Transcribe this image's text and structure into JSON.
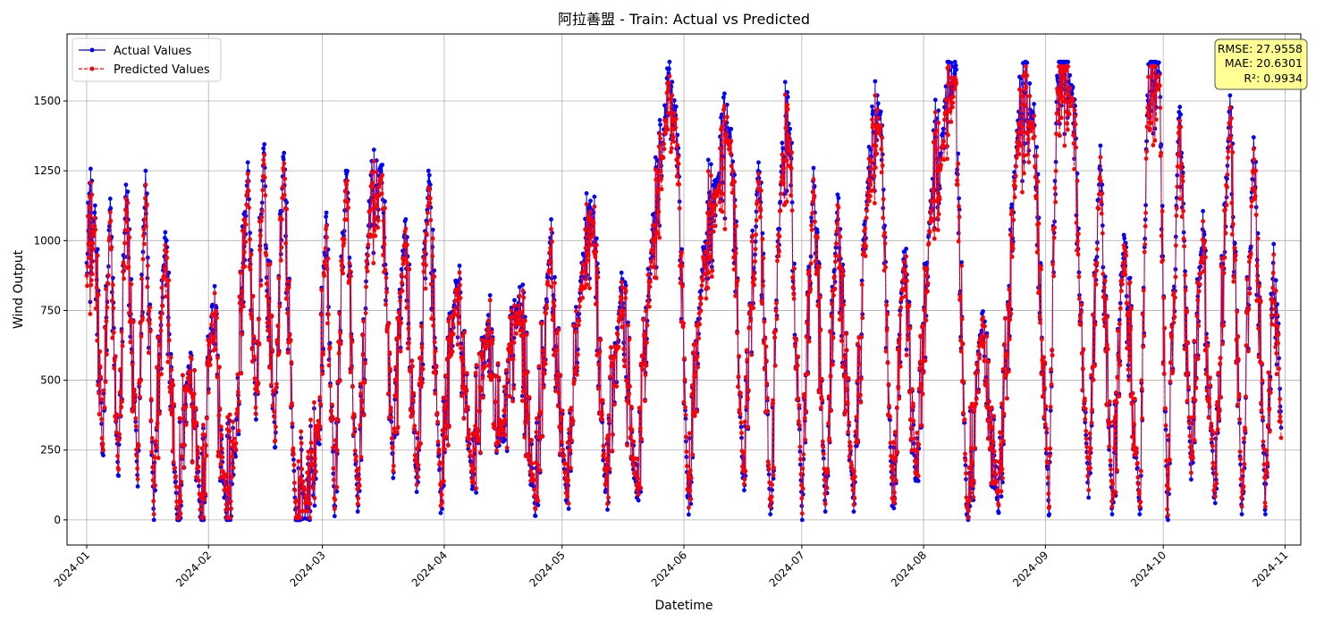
{
  "chart_data": {
    "type": "line",
    "title": "阿拉善盟 - Train: Actual vs Predicted",
    "xlabel": "Datetime",
    "ylabel": "Wind Output",
    "xlim": [
      "2023-12-27",
      "2024-11-05"
    ],
    "ylim": [
      -90,
      1740
    ],
    "grid": true,
    "legend_position": "top-left",
    "x_ticks": [
      "2024-01",
      "2024-02",
      "2024-03",
      "2024-04",
      "2024-05",
      "2024-06",
      "2024-07",
      "2024-08",
      "2024-09",
      "2024-10",
      "2024-11"
    ],
    "y_ticks": [
      0,
      250,
      500,
      750,
      1000,
      1250,
      1500
    ],
    "series": [
      {
        "name": "Actual Values",
        "color": "#0000ff",
        "style": "solid",
        "marker": "circle",
        "x_range": [
          "2024-01-01",
          "2024-10-31"
        ],
        "points": [
          [
            "2024-01-01",
            920
          ],
          [
            "2024-01-03",
            1100
          ],
          [
            "2024-01-05",
            240
          ],
          [
            "2024-01-07",
            1150
          ],
          [
            "2024-01-09",
            160
          ],
          [
            "2024-01-11",
            1200
          ],
          [
            "2024-01-14",
            120
          ],
          [
            "2024-01-16",
            1250
          ],
          [
            "2024-01-18",
            40
          ],
          [
            "2024-01-21",
            1030
          ],
          [
            "2024-01-24",
            20
          ],
          [
            "2024-01-27",
            550
          ],
          [
            "2024-01-30",
            10
          ],
          [
            "2024-02-02",
            770
          ],
          [
            "2024-02-05",
            80
          ],
          [
            "2024-02-08",
            250
          ],
          [
            "2024-02-11",
            1280
          ],
          [
            "2024-02-13",
            380
          ],
          [
            "2024-02-15",
            1330
          ],
          [
            "2024-02-18",
            260
          ],
          [
            "2024-02-20",
            1300
          ],
          [
            "2024-02-23",
            80
          ],
          [
            "2024-02-26",
            40
          ],
          [
            "2024-02-29",
            300
          ],
          [
            "2024-03-02",
            1100
          ],
          [
            "2024-03-04",
            50
          ],
          [
            "2024-03-07",
            1250
          ],
          [
            "2024-03-10",
            30
          ],
          [
            "2024-03-13",
            1140
          ],
          [
            "2024-03-16",
            1270
          ],
          [
            "2024-03-19",
            150
          ],
          [
            "2024-03-22",
            1070
          ],
          [
            "2024-03-25",
            100
          ],
          [
            "2024-03-28",
            1250
          ],
          [
            "2024-03-31",
            100
          ],
          [
            "2024-04-04",
            850
          ],
          [
            "2024-04-08",
            150
          ],
          [
            "2024-04-12",
            700
          ],
          [
            "2024-04-16",
            280
          ],
          [
            "2024-04-20",
            800
          ],
          [
            "2024-04-24",
            60
          ],
          [
            "2024-04-28",
            1010
          ],
          [
            "2024-05-02",
            70
          ],
          [
            "2024-05-06",
            920
          ],
          [
            "2024-05-09",
            1100
          ],
          [
            "2024-05-12",
            100
          ],
          [
            "2024-05-16",
            820
          ],
          [
            "2024-05-20",
            80
          ],
          [
            "2024-05-24",
            1040
          ],
          [
            "2024-05-27",
            1380
          ],
          [
            "2024-05-30",
            1480
          ],
          [
            "2024-06-02",
            80
          ],
          [
            "2024-06-06",
            970
          ],
          [
            "2024-06-10",
            1240
          ],
          [
            "2024-06-13",
            1400
          ],
          [
            "2024-06-16",
            150
          ],
          [
            "2024-06-20",
            1280
          ],
          [
            "2024-06-23",
            20
          ],
          [
            "2024-06-26",
            1350
          ],
          [
            "2024-06-28",
            1400
          ],
          [
            "2024-07-01",
            50
          ],
          [
            "2024-07-04",
            1260
          ],
          [
            "2024-07-07",
            30
          ],
          [
            "2024-07-10",
            1100
          ],
          [
            "2024-07-14",
            80
          ],
          [
            "2024-07-18",
            1260
          ],
          [
            "2024-07-21",
            1460
          ],
          [
            "2024-07-24",
            50
          ],
          [
            "2024-07-27",
            960
          ],
          [
            "2024-07-30",
            140
          ],
          [
            "2024-08-03",
            1180
          ],
          [
            "2024-08-06",
            1400
          ],
          [
            "2024-08-09",
            1640
          ],
          [
            "2024-08-12",
            20
          ],
          [
            "2024-08-16",
            720
          ],
          [
            "2024-08-20",
            30
          ],
          [
            "2024-08-25",
            1430
          ],
          [
            "2024-08-29",
            1450
          ],
          [
            "2024-09-02",
            20
          ],
          [
            "2024-09-04",
            1590
          ],
          [
            "2024-09-08",
            1550
          ],
          [
            "2024-09-12",
            80
          ],
          [
            "2024-09-15",
            1340
          ],
          [
            "2024-09-18",
            20
          ],
          [
            "2024-09-21",
            1020
          ],
          [
            "2024-09-25",
            20
          ],
          [
            "2024-09-27",
            1520
          ],
          [
            "2024-09-30",
            1600
          ],
          [
            "2024-10-02",
            10
          ],
          [
            "2024-10-05",
            1460
          ],
          [
            "2024-10-08",
            200
          ],
          [
            "2024-10-11",
            1040
          ],
          [
            "2024-10-14",
            80
          ],
          [
            "2024-10-18",
            1520
          ],
          [
            "2024-10-21",
            20
          ],
          [
            "2024-10-24",
            1370
          ],
          [
            "2024-10-27",
            20
          ],
          [
            "2024-10-29",
            920
          ],
          [
            "2024-10-31",
            330
          ]
        ]
      },
      {
        "name": "Predicted Values",
        "color": "#ff0000",
        "style": "dashed",
        "marker": "circle",
        "x_range": [
          "2024-01-01",
          "2024-10-31"
        ],
        "points": [
          [
            "2024-01-01",
            880
          ],
          [
            "2024-01-03",
            1060
          ],
          [
            "2024-01-05",
            260
          ],
          [
            "2024-01-07",
            1110
          ],
          [
            "2024-01-09",
            180
          ],
          [
            "2024-01-11",
            1160
          ],
          [
            "2024-01-14",
            140
          ],
          [
            "2024-01-16",
            1210
          ],
          [
            "2024-01-18",
            60
          ],
          [
            "2024-01-21",
            990
          ],
          [
            "2024-01-24",
            40
          ],
          [
            "2024-01-27",
            530
          ],
          [
            "2024-01-30",
            30
          ],
          [
            "2024-02-02",
            740
          ],
          [
            "2024-02-05",
            100
          ],
          [
            "2024-02-08",
            270
          ],
          [
            "2024-02-11",
            1250
          ],
          [
            "2024-02-13",
            400
          ],
          [
            "2024-02-15",
            1300
          ],
          [
            "2024-02-18",
            280
          ],
          [
            "2024-02-20",
            1270
          ],
          [
            "2024-02-23",
            100
          ],
          [
            "2024-02-26",
            60
          ],
          [
            "2024-02-29",
            320
          ],
          [
            "2024-03-02",
            1060
          ],
          [
            "2024-03-04",
            70
          ],
          [
            "2024-03-07",
            1220
          ],
          [
            "2024-03-10",
            50
          ],
          [
            "2024-03-13",
            1110
          ],
          [
            "2024-03-16",
            1240
          ],
          [
            "2024-03-19",
            170
          ],
          [
            "2024-03-22",
            1040
          ],
          [
            "2024-03-25",
            120
          ],
          [
            "2024-03-28",
            1200
          ],
          [
            "2024-03-31",
            120
          ],
          [
            "2024-04-04",
            820
          ],
          [
            "2024-04-08",
            170
          ],
          [
            "2024-04-12",
            680
          ],
          [
            "2024-04-16",
            300
          ],
          [
            "2024-04-20",
            770
          ],
          [
            "2024-04-24",
            80
          ],
          [
            "2024-04-28",
            980
          ],
          [
            "2024-05-02",
            90
          ],
          [
            "2024-05-06",
            890
          ],
          [
            "2024-05-09",
            1070
          ],
          [
            "2024-05-12",
            120
          ],
          [
            "2024-05-16",
            790
          ],
          [
            "2024-05-20",
            100
          ],
          [
            "2024-05-24",
            1010
          ],
          [
            "2024-05-27",
            1340
          ],
          [
            "2024-05-30",
            1450
          ],
          [
            "2024-06-02",
            100
          ],
          [
            "2024-06-06",
            940
          ],
          [
            "2024-06-10",
            1210
          ],
          [
            "2024-06-13",
            1370
          ],
          [
            "2024-06-16",
            170
          ],
          [
            "2024-06-20",
            1250
          ],
          [
            "2024-06-23",
            40
          ],
          [
            "2024-06-26",
            1320
          ],
          [
            "2024-06-28",
            1370
          ],
          [
            "2024-07-01",
            70
          ],
          [
            "2024-07-04",
            1230
          ],
          [
            "2024-07-07",
            50
          ],
          [
            "2024-07-10",
            1070
          ],
          [
            "2024-07-14",
            100
          ],
          [
            "2024-07-18",
            1230
          ],
          [
            "2024-07-21",
            1420
          ],
          [
            "2024-07-24",
            70
          ],
          [
            "2024-07-27",
            930
          ],
          [
            "2024-07-30",
            160
          ],
          [
            "2024-08-03",
            1150
          ],
          [
            "2024-08-06",
            1370
          ],
          [
            "2024-08-09",
            1600
          ],
          [
            "2024-08-12",
            40
          ],
          [
            "2024-08-16",
            700
          ],
          [
            "2024-08-20",
            50
          ],
          [
            "2024-08-25",
            1400
          ],
          [
            "2024-08-29",
            1420
          ],
          [
            "2024-09-02",
            40
          ],
          [
            "2024-09-04",
            1560
          ],
          [
            "2024-09-08",
            1520
          ],
          [
            "2024-09-12",
            100
          ],
          [
            "2024-09-15",
            1310
          ],
          [
            "2024-09-18",
            40
          ],
          [
            "2024-09-21",
            990
          ],
          [
            "2024-09-25",
            40
          ],
          [
            "2024-09-27",
            1490
          ],
          [
            "2024-09-30",
            1570
          ],
          [
            "2024-10-02",
            30
          ],
          [
            "2024-10-05",
            1420
          ],
          [
            "2024-10-08",
            220
          ],
          [
            "2024-10-11",
            1010
          ],
          [
            "2024-10-14",
            100
          ],
          [
            "2024-10-18",
            1490
          ],
          [
            "2024-10-21",
            40
          ],
          [
            "2024-10-24",
            1340
          ],
          [
            "2024-10-27",
            40
          ],
          [
            "2024-10-29",
            890
          ],
          [
            "2024-10-31",
            290
          ]
        ]
      }
    ],
    "metrics_box": {
      "lines": [
        "RMSE: 27.9558",
        "MAE: 20.6301",
        "R²: 0.9934"
      ],
      "background": "#ffff80",
      "position": "top-right"
    },
    "colors": {
      "actual": "#0000ff",
      "predicted": "#ff0000",
      "grid": "#b0b0b0",
      "axes": "#000000"
    }
  }
}
